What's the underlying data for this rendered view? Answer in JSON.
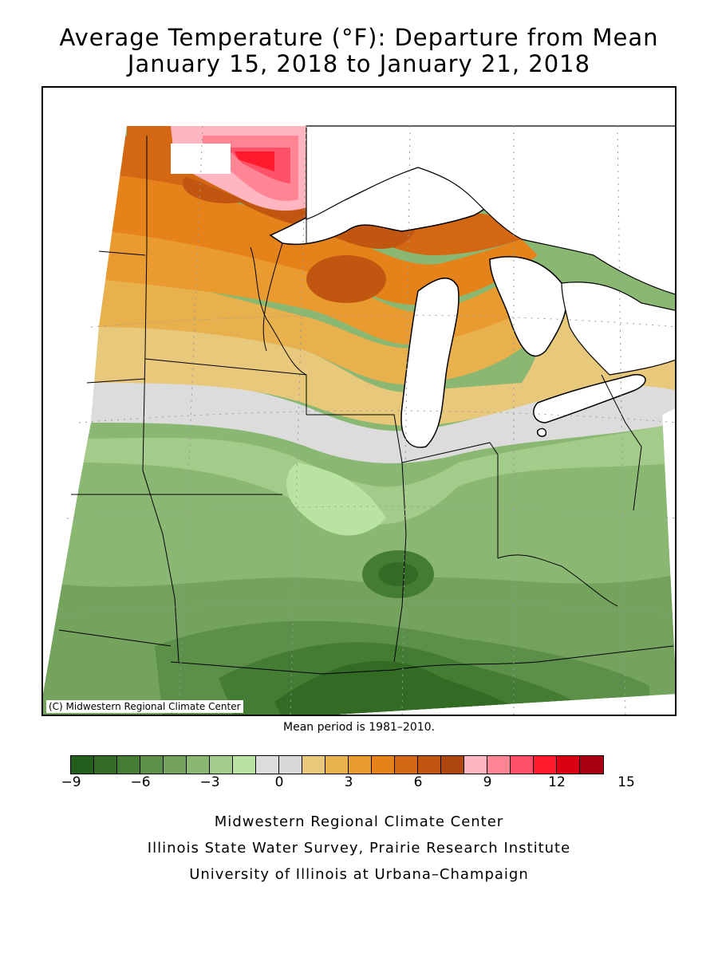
{
  "title": {
    "line1": "Average Temperature (°F): Departure from Mean",
    "line2": "January 15, 2018 to January 21, 2018"
  },
  "map": {
    "copyright": "(C) Midwestern Regional Climate Center",
    "mean_period": "Mean period is 1981–2010.",
    "land_outside_grid_color": "#ffffff",
    "lake_color": "#ffffff"
  },
  "legend": {
    "colors": [
      "#245e1c",
      "#336b25",
      "#457c34",
      "#5c8f48",
      "#74a35e",
      "#8ab873",
      "#a3cb89",
      "#b8e3a0",
      "#dcdcdc",
      "#d8d8d8",
      "#e8c87a",
      "#e8b14e",
      "#e99b2f",
      "#e6821a",
      "#d46714",
      "#c15610",
      "#ad460f",
      "#ffb6c1",
      "#ff8595",
      "#ff5268",
      "#ff1a2e",
      "#d80012",
      "#a80010"
    ],
    "tick_labels": [
      "−9",
      "−6",
      "−3",
      "0",
      "3",
      "6",
      "9",
      "12",
      "15"
    ]
  },
  "footer": {
    "line1": "Midwestern Regional Climate Center",
    "line2": "Illinois State Water Survey, Prairie Research Institute",
    "line3": "University of Illinois at Urbana–Champaign"
  }
}
